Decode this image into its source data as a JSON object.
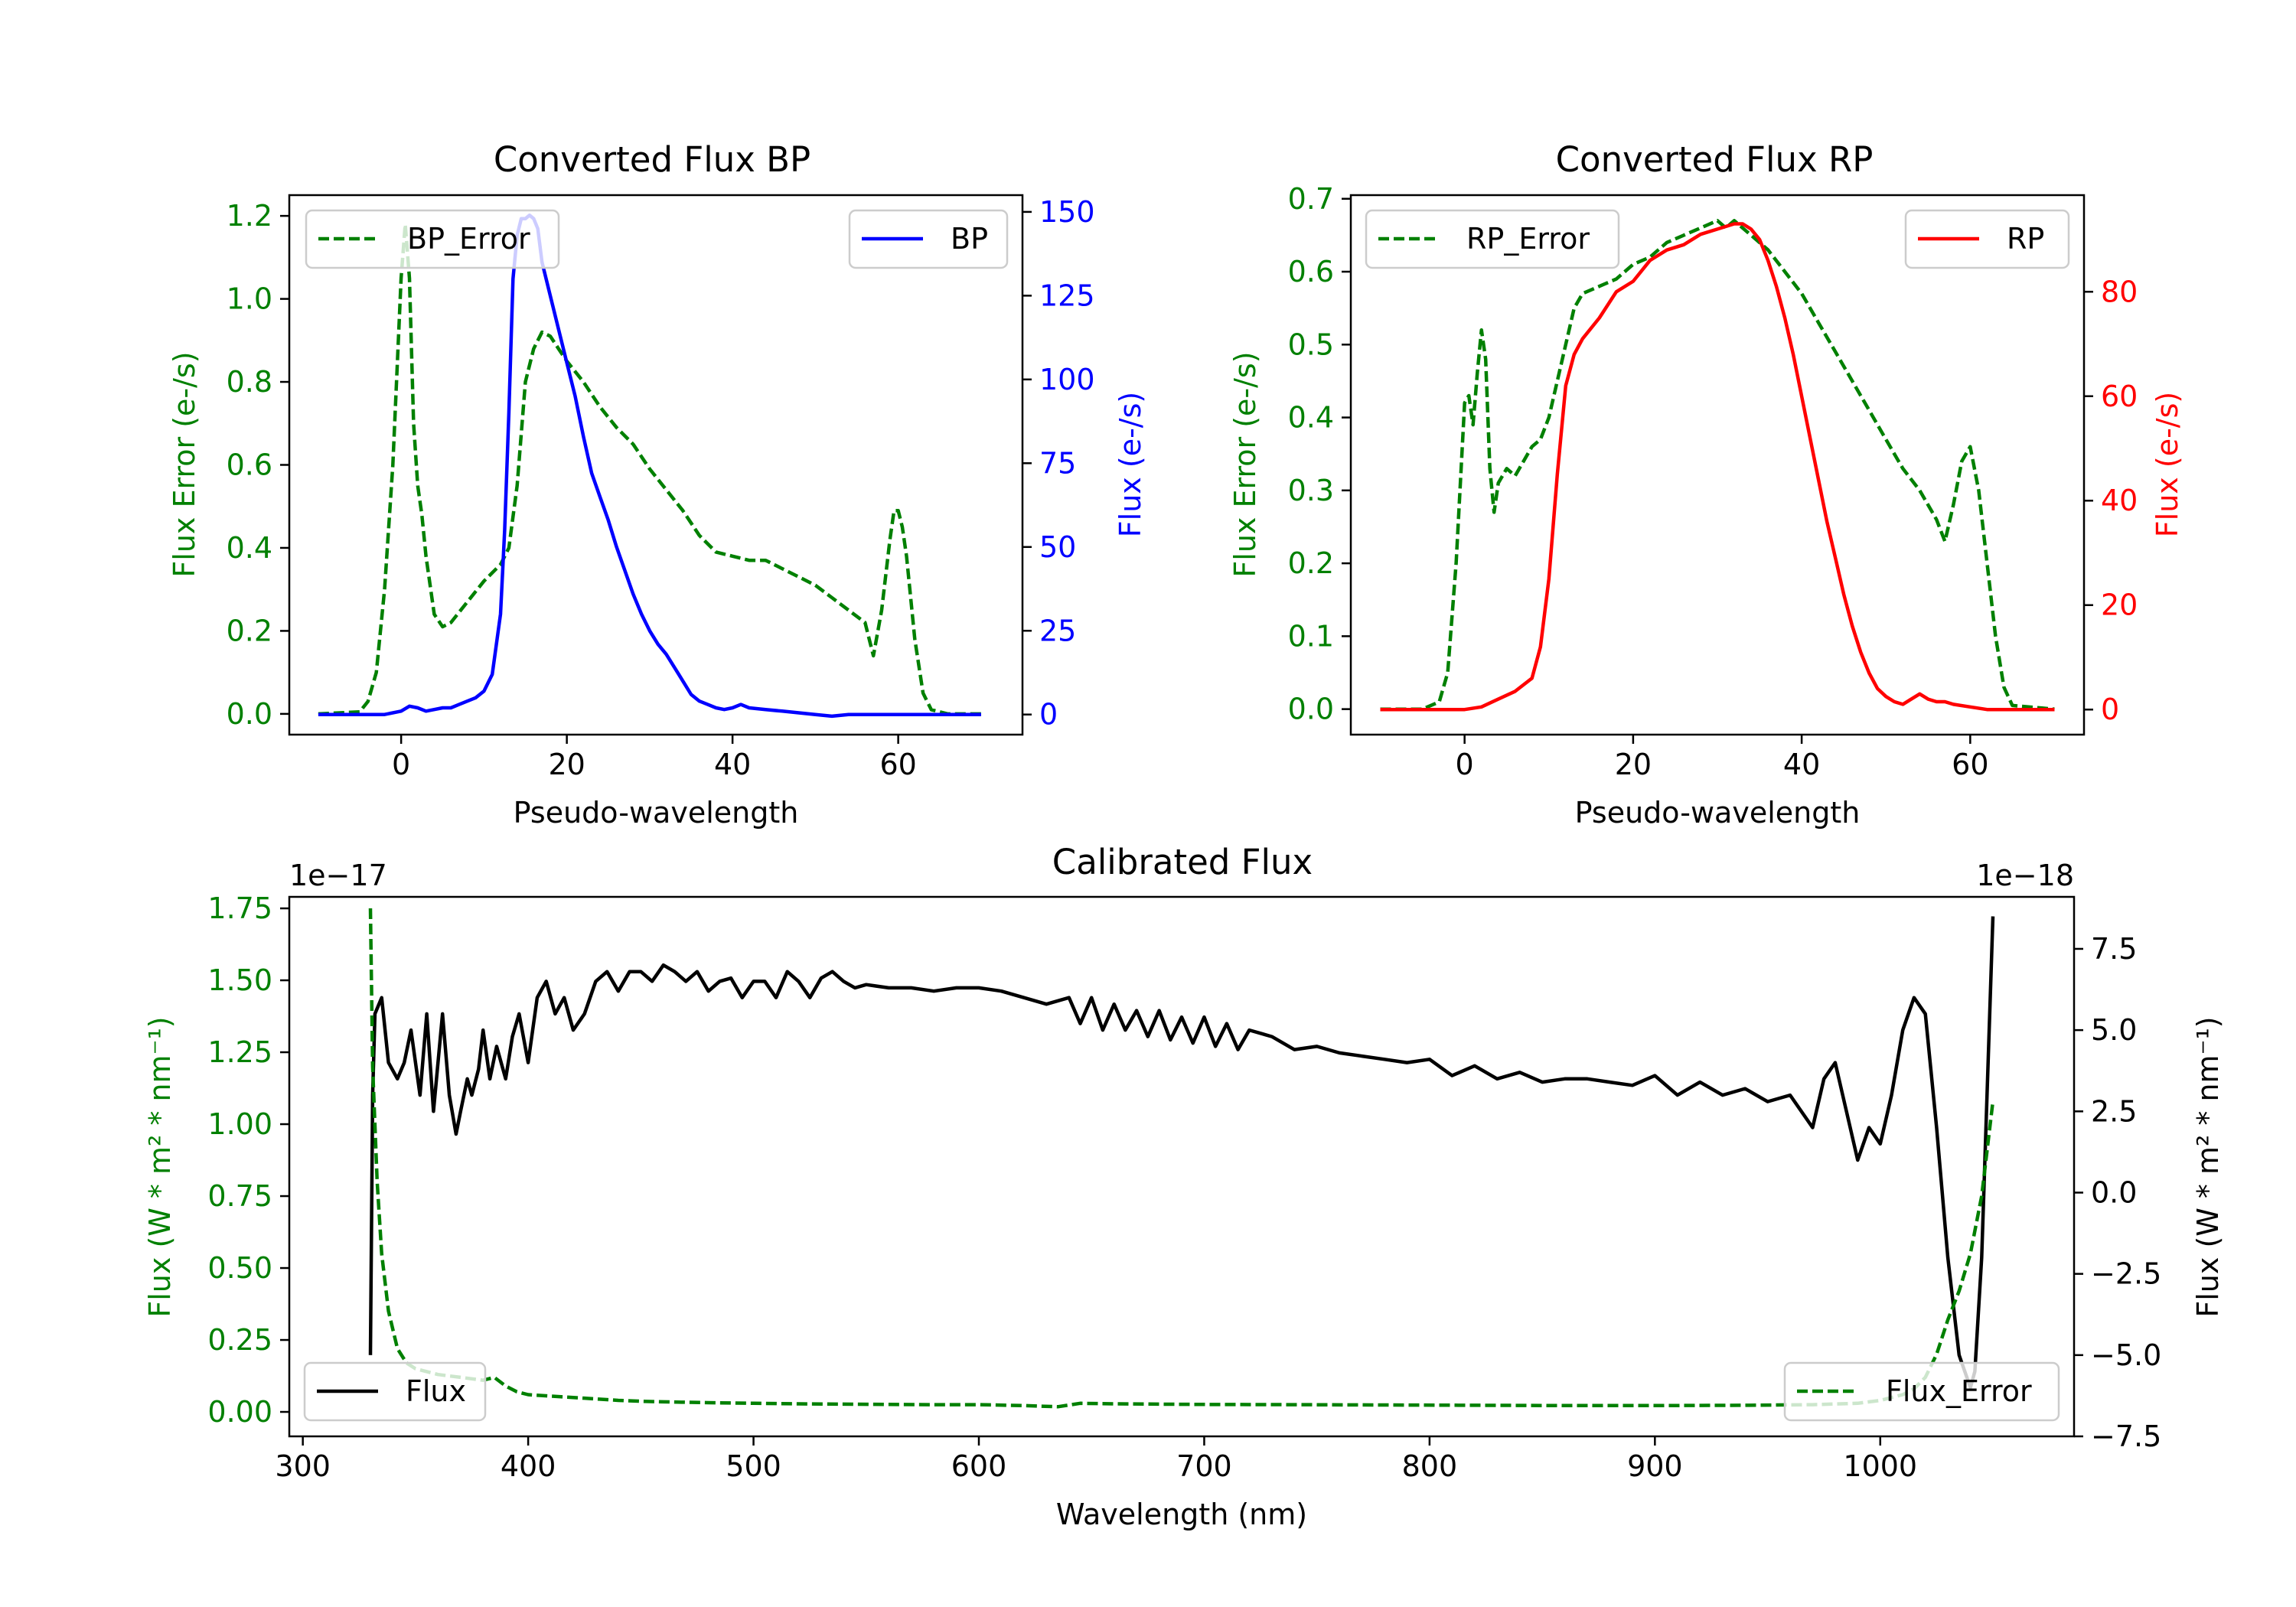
{
  "chart_data": [
    {
      "type": "line",
      "title": "Converted Flux BP",
      "xlabel": "Pseudo-wavelength",
      "xlim": [
        -13.5,
        75
      ],
      "xticks": [
        0,
        20,
        40,
        60
      ],
      "left_axis": {
        "label": "Flux Error (e-/s)",
        "color": "#008000",
        "ylim": [
          -0.05,
          1.25
        ],
        "ticks": [
          0.0,
          0.2,
          0.4,
          0.6,
          0.8,
          1.0,
          1.2
        ],
        "tick_labels": [
          "0.0",
          "0.2",
          "0.4",
          "0.6",
          "0.8",
          "1.0",
          "1.2"
        ]
      },
      "right_axis": {
        "label": "Flux (e-/s)",
        "color": "#0000ff",
        "ylim": [
          -6,
          155
        ],
        "ticks": [
          0,
          25,
          50,
          75,
          100,
          125,
          150
        ],
        "tick_labels": [
          "0",
          "25",
          "50",
          "75",
          "100",
          "125",
          "150"
        ]
      },
      "series": [
        {
          "name": "BP_Error",
          "axis": "left",
          "color": "#008000",
          "style": "dashed",
          "x": [
            -10,
            -5,
            -4,
            -3,
            -2,
            -1,
            0,
            0.5,
            1,
            1.5,
            2,
            2.5,
            3,
            4,
            5,
            6,
            8,
            10,
            12,
            13,
            14,
            15,
            16,
            17,
            18,
            19,
            20,
            22,
            24,
            26,
            28,
            30,
            32,
            34,
            36,
            38,
            40,
            42,
            44,
            46,
            48,
            50,
            52,
            54,
            56,
            57,
            58,
            59,
            59.5,
            60,
            60.5,
            61,
            62,
            63,
            64,
            66,
            70
          ],
          "y": [
            0.0,
            0.005,
            0.03,
            0.1,
            0.3,
            0.6,
            1.05,
            1.18,
            1.05,
            0.7,
            0.55,
            0.48,
            0.38,
            0.24,
            0.21,
            0.22,
            0.27,
            0.32,
            0.36,
            0.4,
            0.55,
            0.8,
            0.88,
            0.92,
            0.91,
            0.88,
            0.85,
            0.8,
            0.74,
            0.69,
            0.65,
            0.59,
            0.54,
            0.49,
            0.43,
            0.39,
            0.38,
            0.37,
            0.37,
            0.35,
            0.33,
            0.31,
            0.28,
            0.25,
            0.22,
            0.14,
            0.25,
            0.42,
            0.49,
            0.49,
            0.45,
            0.38,
            0.18,
            0.05,
            0.01,
            0.0,
            0.0
          ]
        },
        {
          "name": "BP",
          "axis": "right",
          "color": "#0000ff",
          "style": "solid",
          "x": [
            -10,
            -5,
            -2,
            0,
            1,
            2,
            3,
            4,
            5,
            6,
            7,
            8,
            9,
            10,
            11,
            12,
            12.5,
            13,
            13.5,
            14,
            14.5,
            15,
            15.5,
            16,
            16.5,
            17,
            18,
            19,
            20,
            21,
            22,
            23,
            24,
            25,
            26,
            27,
            28,
            29,
            30,
            31,
            32,
            33,
            34,
            35,
            36,
            37,
            38,
            39,
            40,
            41,
            42,
            44,
            46,
            48,
            50,
            52,
            54,
            56,
            58,
            60,
            62,
            64,
            66,
            70
          ],
          "y": [
            0,
            0,
            0,
            1,
            2.5,
            2,
            1,
            1.5,
            2,
            2,
            3,
            4,
            5,
            7,
            12,
            30,
            55,
            90,
            130,
            143,
            148,
            148,
            149,
            148,
            145,
            135,
            125,
            115,
            105,
            95,
            83,
            72,
            65,
            58,
            50,
            43,
            36,
            30,
            25,
            21,
            18,
            14,
            10,
            6,
            4,
            3,
            2,
            1.5,
            2,
            3,
            2,
            1.5,
            1,
            0.5,
            0,
            -0.5,
            0,
            0,
            0,
            0,
            0,
            0,
            0,
            0
          ]
        }
      ],
      "legends": [
        {
          "position": "upper left",
          "entries": [
            "BP_Error"
          ]
        },
        {
          "position": "upper right",
          "entries": [
            "BP"
          ]
        }
      ]
    },
    {
      "type": "line",
      "title": "Converted Flux RP",
      "xlabel": "Pseudo-wavelength",
      "xlim": [
        -13.5,
        73.5
      ],
      "xticks": [
        0,
        20,
        40,
        60
      ],
      "left_axis": {
        "label": "Flux Error (e-/s)",
        "color": "#008000",
        "ylim": [
          -0.035,
          0.705
        ],
        "ticks": [
          0.0,
          0.1,
          0.2,
          0.3,
          0.4,
          0.5,
          0.6,
          0.7
        ],
        "tick_labels": [
          "0.0",
          "0.1",
          "0.2",
          "0.3",
          "0.4",
          "0.5",
          "0.6",
          "0.7"
        ]
      },
      "right_axis": {
        "label": "Flux (e-/s)",
        "color": "#ff0000",
        "ylim": [
          -4.8,
          98.5
        ],
        "ticks": [
          0,
          20,
          40,
          60,
          80
        ],
        "tick_labels": [
          "0",
          "20",
          "40",
          "60",
          "80"
        ]
      },
      "series": [
        {
          "name": "RP_Error",
          "axis": "left",
          "color": "#008000",
          "style": "dashed",
          "x": [
            -10,
            -5,
            -3,
            -2,
            -1,
            0,
            0.5,
            1,
            1.5,
            2,
            2.5,
            3,
            3.5,
            4,
            5,
            6,
            7,
            8,
            9,
            10,
            11,
            12,
            13,
            14,
            16,
            18,
            20,
            22,
            24,
            26,
            28,
            30,
            31,
            32,
            33,
            34,
            36,
            38,
            40,
            42,
            44,
            46,
            48,
            50,
            52,
            54,
            55,
            56,
            57,
            58,
            59,
            60,
            61,
            62,
            63,
            64,
            65,
            70
          ],
          "y": [
            0,
            0,
            0.01,
            0.05,
            0.2,
            0.42,
            0.43,
            0.39,
            0.46,
            0.52,
            0.48,
            0.33,
            0.27,
            0.31,
            0.33,
            0.32,
            0.34,
            0.36,
            0.37,
            0.4,
            0.45,
            0.5,
            0.55,
            0.57,
            0.58,
            0.59,
            0.61,
            0.62,
            0.64,
            0.65,
            0.66,
            0.67,
            0.66,
            0.67,
            0.66,
            0.65,
            0.63,
            0.6,
            0.57,
            0.53,
            0.49,
            0.45,
            0.41,
            0.37,
            0.33,
            0.3,
            0.28,
            0.26,
            0.23,
            0.28,
            0.34,
            0.36,
            0.3,
            0.2,
            0.1,
            0.03,
            0.005,
            0
          ]
        },
        {
          "name": "RP",
          "axis": "right",
          "color": "#ff0000",
          "style": "solid",
          "x": [
            -10,
            -5,
            0,
            2,
            4,
            6,
            8,
            9,
            10,
            11,
            12,
            13,
            14,
            16,
            18,
            20,
            22,
            24,
            26,
            28,
            30,
            32,
            33,
            34,
            35,
            36,
            37,
            38,
            39,
            40,
            41,
            42,
            43,
            44,
            45,
            46,
            47,
            48,
            49,
            50,
            51,
            52,
            53,
            54,
            55,
            56,
            57,
            58,
            60,
            62,
            64,
            66,
            70
          ],
          "y": [
            0,
            0,
            0,
            0.5,
            2,
            3.5,
            6,
            12,
            25,
            45,
            62,
            68,
            71,
            75,
            80,
            82,
            86,
            88,
            89,
            91,
            92,
            93,
            93,
            92,
            90,
            86,
            81,
            75,
            68,
            60,
            52,
            44,
            36,
            29,
            22,
            16,
            11,
            7,
            4,
            2.5,
            1.5,
            1,
            2,
            3,
            2,
            1.5,
            1.5,
            1,
            0.5,
            0,
            0,
            0,
            0
          ]
        }
      ],
      "legends": [
        {
          "position": "upper left",
          "entries": [
            "RP_Error"
          ]
        },
        {
          "position": "upper right",
          "entries": [
            "RP"
          ]
        }
      ]
    },
    {
      "type": "line",
      "title": "Calibrated Flux",
      "xlabel": "Wavelength (nm)",
      "xlim": [
        294,
        1086
      ],
      "xticks": [
        300,
        400,
        500,
        600,
        700,
        800,
        900,
        1000
      ],
      "left_axis": {
        "label": "Flux (W * m² * nm⁻¹)",
        "color": "#008000",
        "offset_text": "1e−17",
        "ylim": [
          -0.085,
          1.79
        ],
        "ticks": [
          0.0,
          0.25,
          0.5,
          0.75,
          1.0,
          1.25,
          1.5,
          1.75
        ],
        "tick_labels": [
          "0.00",
          "0.25",
          "0.50",
          "0.75",
          "1.00",
          "1.25",
          "1.50",
          "1.75"
        ]
      },
      "right_axis": {
        "label": "Flux (W * m² * nm⁻¹)",
        "color": "#000000",
        "offset_text": "1e−18",
        "ylim": [
          -7.5,
          9.1
        ],
        "ticks": [
          -7.5,
          -5.0,
          -2.5,
          0.0,
          2.5,
          5.0,
          7.5
        ],
        "tick_labels": [
          "−7.5",
          "−5.0",
          "−2.5",
          "0.0",
          "2.5",
          "5.0",
          "7.5"
        ]
      },
      "series": [
        {
          "name": "Flux",
          "axis": "right",
          "color": "#000000",
          "style": "solid",
          "x": [
            330,
            331,
            332,
            335,
            338,
            342,
            345,
            348,
            352,
            355,
            358,
            362,
            365,
            368,
            370,
            373,
            375,
            378,
            380,
            383,
            386,
            390,
            393,
            396,
            400,
            404,
            408,
            412,
            416,
            420,
            425,
            430,
            435,
            440,
            445,
            450,
            455,
            460,
            465,
            470,
            475,
            480,
            485,
            490,
            495,
            500,
            505,
            510,
            515,
            520,
            525,
            530,
            535,
            540,
            545,
            550,
            560,
            570,
            580,
            590,
            600,
            610,
            620,
            630,
            640,
            645,
            650,
            655,
            660,
            665,
            670,
            675,
            680,
            685,
            690,
            695,
            700,
            705,
            710,
            715,
            720,
            730,
            740,
            750,
            760,
            770,
            780,
            790,
            800,
            810,
            820,
            830,
            840,
            850,
            860,
            870,
            880,
            890,
            900,
            910,
            920,
            930,
            940,
            950,
            960,
            970,
            975,
            980,
            985,
            990,
            995,
            1000,
            1005,
            1010,
            1015,
            1020,
            1025,
            1030,
            1035,
            1040,
            1042,
            1045,
            1050
          ],
          "y": [
            -5,
            3,
            5.5,
            6,
            4,
            3.5,
            4,
            5,
            3,
            5.5,
            2.5,
            5.5,
            3,
            1.8,
            2.5,
            3.5,
            3,
            3.8,
            5,
            3.5,
            4.5,
            3.5,
            4.8,
            5.5,
            4,
            6,
            6.5,
            5.5,
            6,
            5,
            5.5,
            6.5,
            6.8,
            6.2,
            6.8,
            6.8,
            6.5,
            7,
            6.8,
            6.5,
            6.8,
            6.2,
            6.5,
            6.6,
            6,
            6.5,
            6.5,
            6,
            6.8,
            6.5,
            6,
            6.6,
            6.8,
            6.5,
            6.3,
            6.4,
            6.3,
            6.3,
            6.2,
            6.3,
            6.3,
            6.2,
            6,
            5.8,
            6,
            5.2,
            6,
            5,
            5.8,
            5,
            5.6,
            4.8,
            5.6,
            4.7,
            5.4,
            4.6,
            5.4,
            4.5,
            5.2,
            4.4,
            5,
            4.8,
            4.4,
            4.5,
            4.3,
            4.2,
            4.1,
            4,
            4.1,
            3.6,
            3.9,
            3.5,
            3.7,
            3.4,
            3.5,
            3.5,
            3.4,
            3.3,
            3.6,
            3.0,
            3.4,
            3.0,
            3.2,
            2.8,
            3.0,
            2.0,
            3.5,
            4.0,
            2.5,
            1.0,
            2.0,
            1.5,
            3.0,
            5.0,
            6.0,
            5.5,
            2.0,
            -2.0,
            -5.0,
            -6.0,
            -5.5,
            -2.0,
            8.5
          ]
        },
        {
          "name": "Flux_Error",
          "axis": "left",
          "color": "#008000",
          "style": "dashed",
          "x": [
            330,
            331,
            333,
            335,
            338,
            342,
            346,
            350,
            360,
            370,
            380,
            385,
            390,
            395,
            400,
            410,
            420,
            430,
            440,
            450,
            460,
            480,
            500,
            520,
            540,
            560,
            580,
            600,
            620,
            635,
            645,
            660,
            700,
            740,
            780,
            820,
            860,
            900,
            940,
            970,
            990,
            1000,
            1005,
            1010,
            1015,
            1020,
            1025,
            1030,
            1035,
            1040,
            1045,
            1050
          ],
          "y": [
            1.75,
            1.2,
            0.8,
            0.55,
            0.35,
            0.22,
            0.17,
            0.15,
            0.13,
            0.12,
            0.11,
            0.12,
            0.09,
            0.07,
            0.06,
            0.055,
            0.05,
            0.045,
            0.04,
            0.037,
            0.035,
            0.032,
            0.03,
            0.028,
            0.027,
            0.026,
            0.025,
            0.025,
            0.022,
            0.018,
            0.03,
            0.028,
            0.026,
            0.025,
            0.024,
            0.023,
            0.022,
            0.022,
            0.023,
            0.025,
            0.03,
            0.04,
            0.05,
            0.06,
            0.08,
            0.12,
            0.2,
            0.32,
            0.42,
            0.55,
            0.75,
            1.08
          ]
        }
      ],
      "legends": [
        {
          "position": "lower left",
          "entries": [
            "Flux"
          ]
        },
        {
          "position": "lower right",
          "entries": [
            "Flux_Error"
          ]
        }
      ]
    }
  ]
}
